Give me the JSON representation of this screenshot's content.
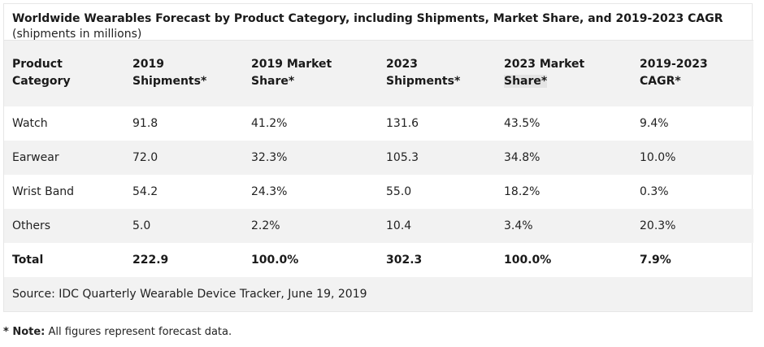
{
  "chart_data": {
    "type": "table",
    "title": "Worldwide Wearables Forecast by Product Category, including Shipments, Market Share, and 2019-2023 CAGR",
    "subtitle": "(shipments in millions)",
    "columns": [
      {
        "line1": "Product",
        "line2": "Category"
      },
      {
        "line1": "2019",
        "line2": "Shipments*"
      },
      {
        "line1": "2019 Market",
        "line2": "Share*"
      },
      {
        "line1": "2023",
        "line2": "Shipments*"
      },
      {
        "line1": "2023 Market",
        "line2": "Share*"
      },
      {
        "line1": "2019-2023 CAGR*",
        "line2": ""
      }
    ],
    "rows": [
      [
        "Watch",
        "91.8",
        "41.2%",
        "131.6",
        "43.5%",
        "9.4%"
      ],
      [
        "Earwear",
        "72.0",
        "32.3%",
        "105.3",
        "34.8%",
        "10.0%"
      ],
      [
        "Wrist Band",
        "54.2",
        "24.3%",
        "55.0",
        "18.2%",
        "0.3%"
      ],
      [
        "Others",
        "5.0",
        "2.2%",
        "10.4",
        "3.4%",
        "20.3%"
      ],
      [
        "Total",
        "222.9",
        "100.0%",
        "302.3",
        "100.0%",
        "7.9%"
      ]
    ],
    "source": "Source: IDC Quarterly Wearable Device Tracker, June 19, 2019"
  },
  "note": {
    "label": "* Note:",
    "text": " All figures represent forecast data."
  }
}
